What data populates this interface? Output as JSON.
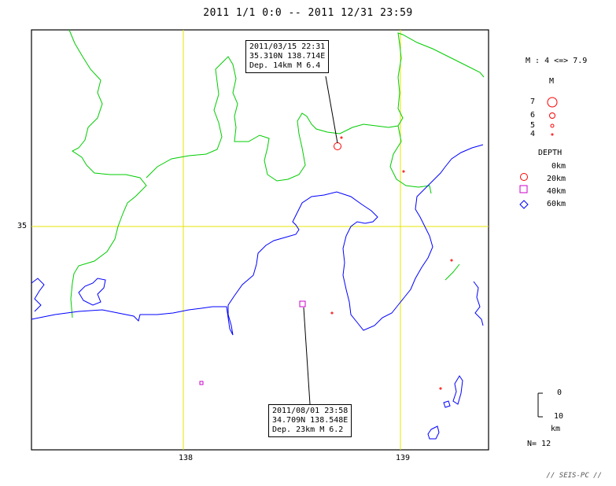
{
  "title": "2011 1/1 0:0 -- 2011 12/31 23:59",
  "axes": {
    "lat_label": "35",
    "lon_labels": [
      "138",
      "139"
    ]
  },
  "callouts": [
    {
      "datetime": "2011/03/15 22:31",
      "coords": "35.310N  138.714E",
      "depth_mag": "Dep. 14km   M 6.4"
    },
    {
      "datetime": "2011/08/01 23:58",
      "coords": "34.709N  138.548E",
      "depth_mag": "Dep. 23km   M 6.2"
    }
  ],
  "legend": {
    "mag_range": "M : 4 <=> 7.9",
    "mag_title": "M",
    "mag_items": [
      {
        "label": "7",
        "value": 7
      },
      {
        "label": "6",
        "value": 6
      },
      {
        "label": "5",
        "value": 5
      },
      {
        "label": "4",
        "value": 4
      }
    ],
    "depth_title": "DEPTH",
    "depth_items": [
      {
        "label": "0km",
        "symbol": "none"
      },
      {
        "label": "20km",
        "symbol": "circle",
        "color": "#ff0000"
      },
      {
        "label": "40km",
        "symbol": "square",
        "color": "#cc00cc"
      },
      {
        "label": "60km",
        "symbol": "diamond",
        "color": "#0000ff"
      }
    ]
  },
  "depth_scale": {
    "top": "0",
    "bottom": "10",
    "unit": "km"
  },
  "count": "N= 12",
  "footer": "// SEIS-PC //",
  "colors": {
    "grid": "#e6e600",
    "prefecture": "#00cc00",
    "coast": "#0000ff",
    "shallow": "#ff0000",
    "mid": "#cc00cc"
  }
}
